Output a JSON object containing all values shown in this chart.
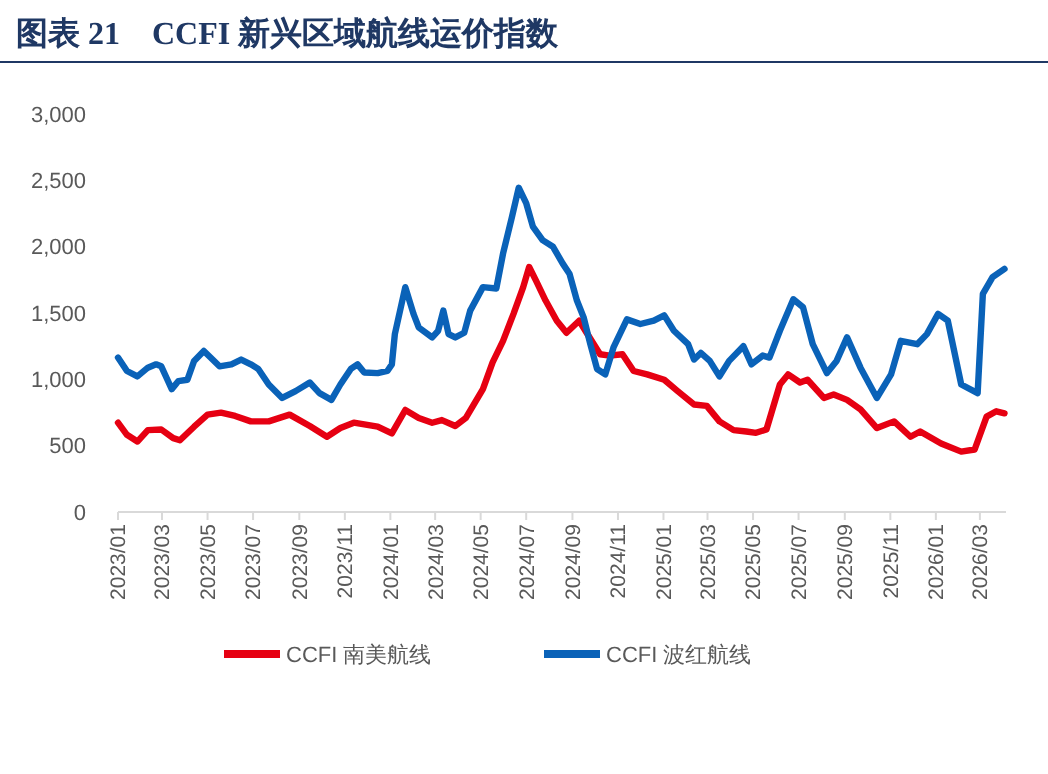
{
  "chart_data": {
    "type": "line",
    "title": "图表 21　CCFI 新兴区域航线运价指数",
    "xlim": [
      "2023-01-01",
      "2026-04-05"
    ],
    "xticks": [
      {
        "value": "2023-01",
        "label": "2023/01"
      },
      {
        "value": "2023-03",
        "label": "2023/03"
      },
      {
        "value": "2023-05",
        "label": "2023/05"
      },
      {
        "value": "2023-07",
        "label": "2023/07"
      },
      {
        "value": "2023-09",
        "label": "2023/09"
      },
      {
        "value": "2023-11",
        "label": "2023/11"
      },
      {
        "value": "2024-01",
        "label": "2024/01"
      },
      {
        "value": "2024-03",
        "label": "2024/03"
      },
      {
        "value": "2024-05",
        "label": "2024/05"
      },
      {
        "value": "2024-07",
        "label": "2024/07"
      },
      {
        "value": "2024-09",
        "label": "2024/09"
      },
      {
        "value": "2024-11",
        "label": "2024/11"
      },
      {
        "value": "2025-01",
        "label": "2025/01"
      },
      {
        "value": "2025-03",
        "label": "2025/03"
      },
      {
        "value": "2025-05",
        "label": "2025/05"
      },
      {
        "value": "2025-07",
        "label": "2025/07"
      },
      {
        "value": "2025-09",
        "label": "2025/09"
      },
      {
        "value": "2025-11",
        "label": "2025/11"
      },
      {
        "value": "2026-01",
        "label": "2026/01"
      },
      {
        "value": "2026-03",
        "label": "2026/03"
      }
    ],
    "ylim": [
      0,
      3000
    ],
    "yticks": [
      {
        "value": 0,
        "label": "0"
      },
      {
        "value": 500,
        "label": "500"
      },
      {
        "value": 1000,
        "label": "1,000"
      },
      {
        "value": 1500,
        "label": "1,500"
      },
      {
        "value": 2000,
        "label": "2,000"
      },
      {
        "value": 2500,
        "label": "2,500"
      },
      {
        "value": 3000,
        "label": "3,000"
      }
    ],
    "grid": false,
    "legend": "bottom",
    "marker": "none",
    "line_style": "solid",
    "series": [
      {
        "name": "CCFI 南美航线",
        "color": "#e60012",
        "x": [
          "2023-01-01",
          "2023-01-13",
          "2023-01-27",
          "2023-02-10",
          "2023-02-28",
          "2023-03-16",
          "2023-03-25",
          "2023-04-13",
          "2023-05-01",
          "2023-05-19",
          "2023-06-07",
          "2023-06-28",
          "2023-07-22",
          "2023-08-19",
          "2023-09-15",
          "2023-10-08",
          "2023-10-26",
          "2023-11-13",
          "2023-12-15",
          "2024-01-03",
          "2024-01-21",
          "2024-02-08",
          "2024-02-26",
          "2024-03-10",
          "2024-03-28",
          "2024-04-11",
          "2024-05-04",
          "2024-05-17",
          "2024-05-31",
          "2024-06-14",
          "2024-06-27",
          "2024-07-05",
          "2024-07-14",
          "2024-07-27",
          "2024-08-11",
          "2024-08-24",
          "2024-09-10",
          "2024-09-20",
          "2024-10-08",
          "2024-10-21",
          "2024-11-07",
          "2024-11-22",
          "2024-12-10",
          "2025-01-02",
          "2025-01-20",
          "2025-02-11",
          "2025-02-28",
          "2025-03-17",
          "2025-04-05",
          "2025-04-22",
          "2025-05-05",
          "2025-05-19",
          "2025-06-06",
          "2025-06-17",
          "2025-07-03",
          "2025-07-13",
          "2025-08-04",
          "2025-08-17",
          "2025-09-04",
          "2025-09-22",
          "2025-10-14",
          "2025-11-06",
          "2025-11-28",
          "2025-12-11",
          "2026-01-08",
          "2026-02-04",
          "2026-02-22",
          "2026-03-10",
          "2026-03-23",
          "2026-04-03"
        ],
        "values": [
          673,
          582,
          531,
          617,
          622,
          557,
          541,
          643,
          734,
          749,
          724,
          683,
          683,
          734,
          648,
          567,
          633,
          673,
          643,
          592,
          769,
          708,
          673,
          693,
          648,
          708,
          926,
          1128,
          1290,
          1493,
          1695,
          1847,
          1746,
          1594,
          1442,
          1351,
          1442,
          1351,
          1189,
          1179,
          1189,
          1063,
          1037,
          997,
          911,
          810,
          800,
          683,
          617,
          607,
          597,
          622,
          961,
          1037,
          976,
          997,
          860,
          886,
          845,
          774,
          633,
          683,
          567,
          607,
          516,
          455,
          471,
          719,
          759,
          744
        ]
      },
      {
        "name": "CCFI 波红航线",
        "color": "#0a62b8",
        "x": [
          "2023-01-01",
          "2023-01-13",
          "2023-01-27",
          "2023-02-10",
          "2023-02-21",
          "2023-02-28",
          "2023-03-07",
          "2023-03-14",
          "2023-03-23",
          "2023-04-04",
          "2023-04-13",
          "2023-04-26",
          "2023-05-05",
          "2023-05-17",
          "2023-06-02",
          "2023-06-15",
          "2023-06-28",
          "2023-07-08",
          "2023-07-22",
          "2023-08-09",
          "2023-08-27",
          "2023-09-15",
          "2023-09-28",
          "2023-10-14",
          "2023-10-26",
          "2023-11-09",
          "2023-11-18",
          "2023-11-27",
          "2023-12-15",
          "2023-12-28",
          "2024-01-03",
          "2024-01-07",
          "2024-01-21",
          "2024-02-01",
          "2024-02-08",
          "2024-02-26",
          "2024-03-05",
          "2024-03-12",
          "2024-03-19",
          "2024-03-28",
          "2024-04-09",
          "2024-04-17",
          "2024-05-04",
          "2024-05-22",
          "2024-05-31",
          "2024-06-12",
          "2024-06-21",
          "2024-07-01",
          "2024-07-10",
          "2024-07-23",
          "2024-08-06",
          "2024-08-19",
          "2024-08-28",
          "2024-09-07",
          "2024-09-16",
          "2024-09-25",
          "2024-10-04",
          "2024-10-15",
          "2024-10-26",
          "2024-11-13",
          "2024-12-01",
          "2024-12-19",
          "2025-01-02",
          "2025-01-15",
          "2025-02-03",
          "2025-02-11",
          "2025-02-20",
          "2025-03-04",
          "2025-03-17",
          "2025-03-30",
          "2025-04-18",
          "2025-04-29",
          "2025-05-14",
          "2025-05-23",
          "2025-06-06",
          "2025-06-24",
          "2025-07-07",
          "2025-07-20",
          "2025-08-08",
          "2025-08-21",
          "2025-09-04",
          "2025-09-22",
          "2025-10-14",
          "2025-11-02",
          "2025-11-15",
          "2025-12-07",
          "2025-12-20",
          "2026-01-04",
          "2026-01-17",
          "2026-02-04",
          "2026-02-26",
          "2026-03-05",
          "2026-03-18",
          "2026-04-03"
        ],
        "values": [
          1164,
          1063,
          1022,
          1088,
          1113,
          1098,
          1012,
          926,
          987,
          997,
          1139,
          1214,
          1164,
          1098,
          1113,
          1149,
          1113,
          1078,
          961,
          860,
          911,
          976,
          896,
          845,
          961,
          1078,
          1113,
          1052,
          1047,
          1063,
          1113,
          1341,
          1695,
          1493,
          1391,
          1316,
          1366,
          1518,
          1341,
          1316,
          1351,
          1518,
          1695,
          1685,
          1948,
          2226,
          2444,
          2328,
          2151,
          2049,
          1999,
          1872,
          1796,
          1594,
          1467,
          1265,
          1078,
          1037,
          1240,
          1452,
          1417,
          1442,
          1482,
          1366,
          1265,
          1149,
          1199,
          1139,
          1022,
          1139,
          1250,
          1113,
          1179,
          1164,
          1366,
          1604,
          1543,
          1265,
          1047,
          1139,
          1316,
          1088,
          860,
          1037,
          1290,
          1265,
          1341,
          1493,
          1442,
          961,
          896,
          1644,
          1771,
          1832
        ]
      }
    ]
  }
}
